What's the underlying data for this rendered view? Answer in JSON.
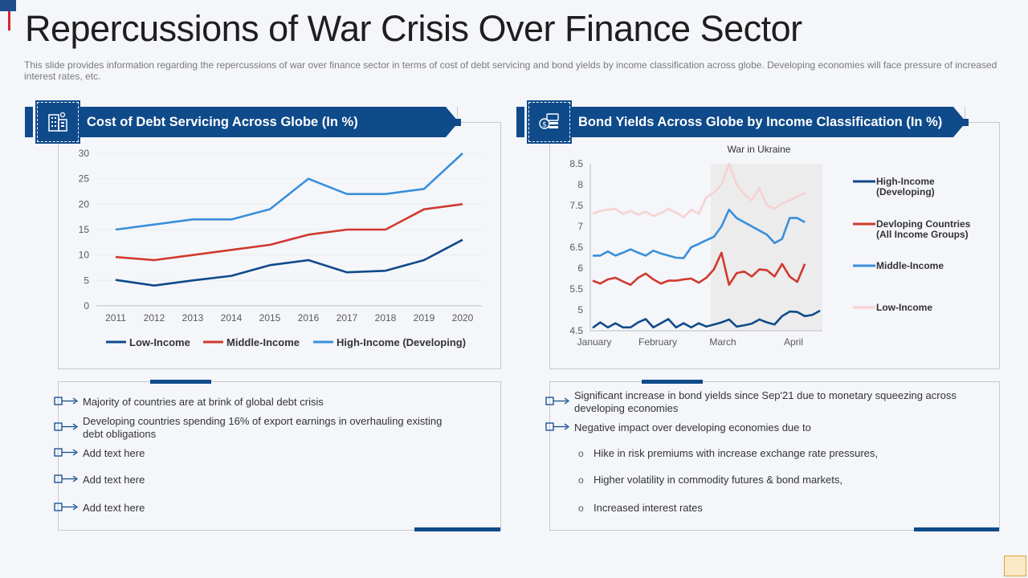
{
  "title": "Repercussions of War Crisis Over Finance Sector",
  "subtitle": "This slide provides information regarding the repercussions of war over finance sector in terms of cost of debt servicing and bond yields by income classification across globe. Developing economies will face pressure of increased interest rates, etc.",
  "colors": {
    "navy": "#0f4a8a",
    "red": "#d0392e",
    "blue": "#3a8fd9",
    "pink": "#f7d2d2"
  },
  "left_panel": {
    "header": "Cost of Debt Servicing Across Globe (In %)",
    "icon": "building-icon",
    "bullets": [
      "Majority of countries are at brink of global debt crisis",
      "Developing  countries spending 16% of export earnings in overhauling  existing debt obligations",
      "Add text here",
      "Add text here",
      "Add text here"
    ]
  },
  "right_panel": {
    "header": "Bond Yields Across Globe by Income Classification (In %)",
    "icon": "money-icon",
    "bullets": [
      "Significant increase in bond yields since Sep'21 due to monetary squeezing across developing  economies",
      "Negative  impact over developing  economies due to"
    ],
    "sub_bullets": [
      "Hike in risk premiums with increase exchange rate pressures,",
      "Higher volatility in commodity futures & bond markets,",
      "Increased interest rates"
    ],
    "sub_marker": "o"
  },
  "chart_data": [
    {
      "type": "line",
      "title": "Cost of Debt Servicing Across Globe (In %)",
      "categories": [
        "2011",
        "2012",
        "2013",
        "2014",
        "2015",
        "2016",
        "2017",
        "2018",
        "2019",
        "2020"
      ],
      "ylim": [
        0,
        30
      ],
      "yticks": [
        "0",
        "5",
        "10",
        "15",
        "20",
        "25",
        "30"
      ],
      "grid": true,
      "legend": "bottom",
      "series": [
        {
          "name": "Low-Income",
          "color": "#0f4a8a",
          "values": [
            5.1,
            4,
            5,
            5.9,
            8,
            9,
            6.6,
            6.9,
            9,
            13
          ]
        },
        {
          "name": "Middle-Income",
          "color": "#d0392e",
          "values": [
            9.6,
            9,
            10,
            11,
            12,
            14,
            15,
            15,
            19,
            20
          ]
        },
        {
          "name": "High-Income (Developing)",
          "color": "#3a8fd9",
          "values": [
            15,
            16,
            17,
            17,
            19,
            25,
            22,
            22,
            23,
            30
          ]
        }
      ]
    },
    {
      "type": "line",
      "title": "Bond Yields Across Globe by Income Classification (In %)",
      "annotation": "War in Ukraine",
      "xticks": [
        "January",
        "February",
        "March",
        "April"
      ],
      "ylim": [
        4.5,
        8.5
      ],
      "yticks": [
        "4.5",
        "5",
        "5.5",
        "6",
        "6.5",
        "7",
        "7.5",
        "8",
        "8.5"
      ],
      "shaded_from_index": 16,
      "legend": "right",
      "series": [
        {
          "name": "High-Income (Developing)",
          "color": "#0f4a8a",
          "values": [
            4.57,
            4.7,
            4.58,
            4.68,
            4.58,
            4.58,
            4.7,
            4.78,
            4.58,
            4.68,
            4.78,
            4.58,
            4.68,
            4.58,
            4.68,
            4.6,
            4.65,
            4.7,
            4.77,
            4.6,
            4.63,
            4.67,
            4.77,
            4.7,
            4.65,
            4.85,
            4.96,
            4.95,
            4.85,
            4.88,
            4.98
          ]
        },
        {
          "name": "Devloping Countries (All Income Groups)",
          "color": "#d0392e",
          "values": [
            5.7,
            5.63,
            5.73,
            5.77,
            5.68,
            5.6,
            5.77,
            5.87,
            5.73,
            5.63,
            5.7,
            5.7,
            5.73,
            5.75,
            5.65,
            5.77,
            5.97,
            6.37,
            5.6,
            5.88,
            5.92,
            5.8,
            5.97,
            5.95,
            5.8,
            6.1,
            5.8,
            5.67,
            6.1
          ]
        },
        {
          "name": "Middle-Income",
          "color": "#3a8fd9",
          "values": [
            6.3,
            6.3,
            6.4,
            6.3,
            6.37,
            6.45,
            6.37,
            6.3,
            6.42,
            6.35,
            6.3,
            6.25,
            6.24,
            6.5,
            6.58,
            6.67,
            6.75,
            7.0,
            7.4,
            7.2,
            7.1,
            7.0,
            6.9,
            6.8,
            6.6,
            6.7,
            7.2,
            7.2,
            7.1
          ]
        },
        {
          "name": "Low-Income",
          "color": "#f7d2d2",
          "values": [
            7.3,
            7.37,
            7.4,
            7.42,
            7.3,
            7.37,
            7.28,
            7.35,
            7.25,
            7.32,
            7.42,
            7.33,
            7.22,
            7.4,
            7.3,
            7.7,
            7.8,
            8.0,
            8.5,
            8.0,
            7.77,
            7.62,
            7.92,
            7.5,
            7.42,
            7.55,
            7.62,
            7.72,
            7.8
          ]
        }
      ]
    }
  ]
}
